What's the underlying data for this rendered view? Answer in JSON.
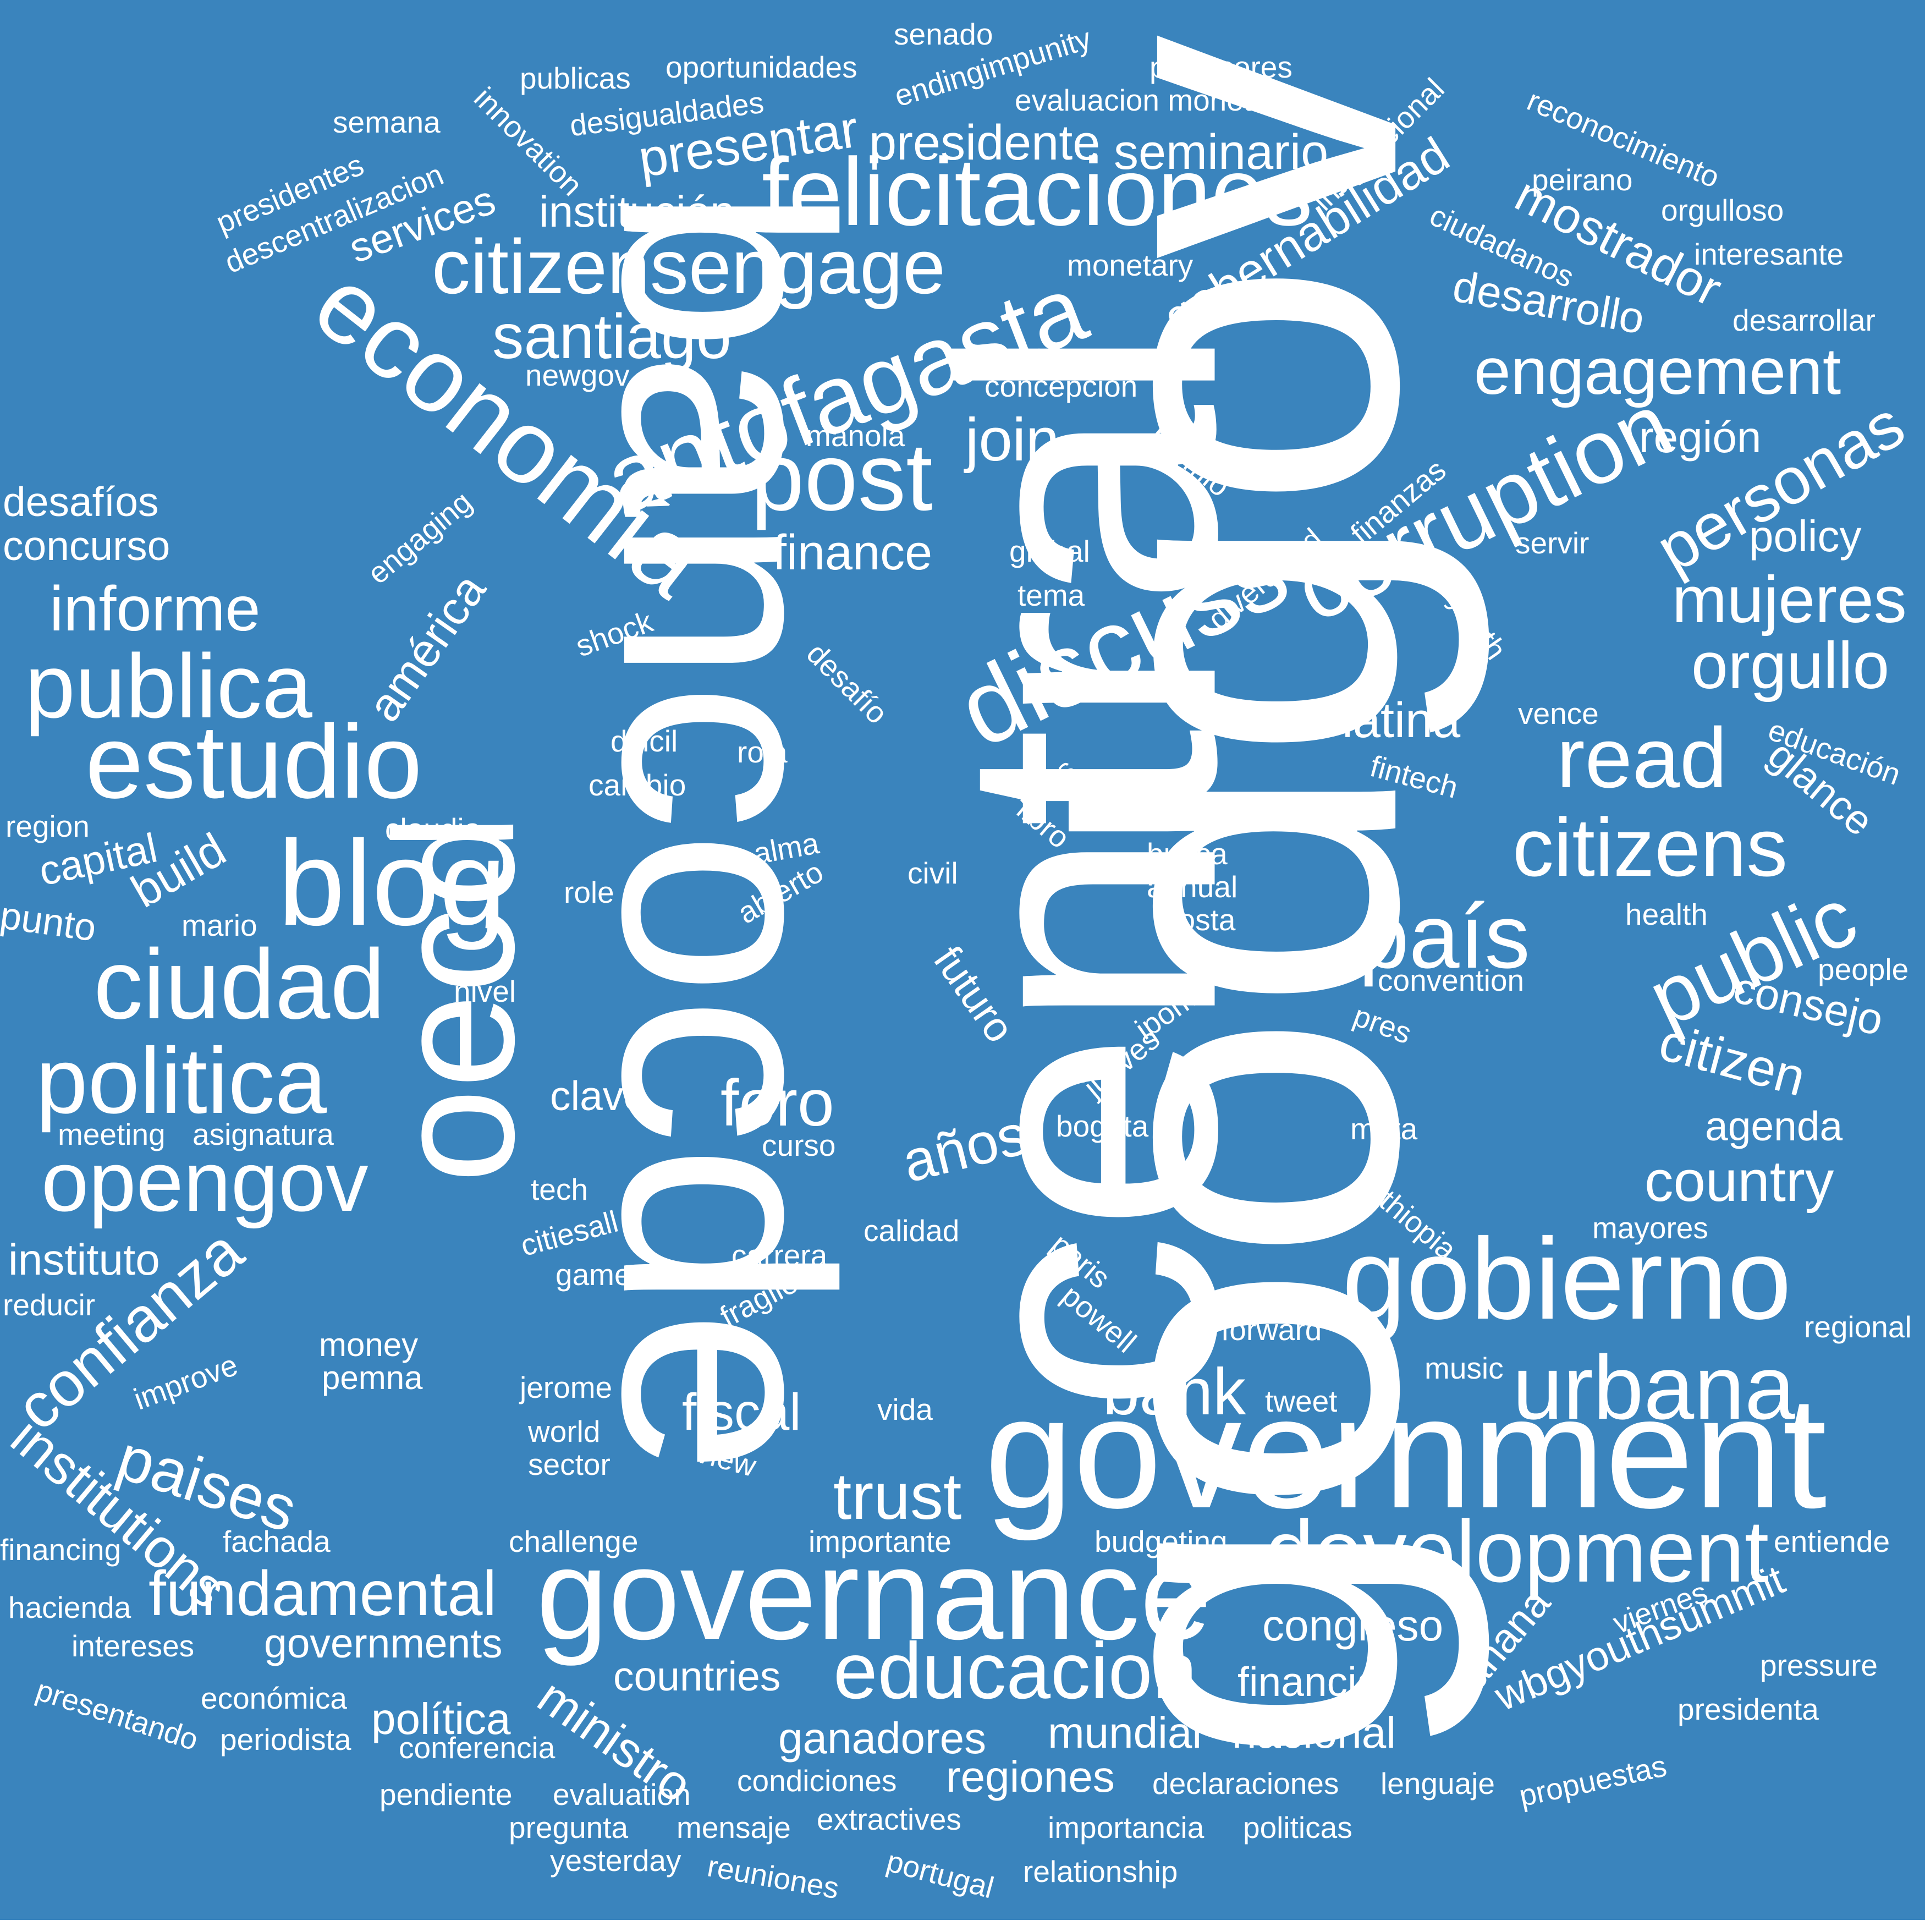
{
  "background_color": "#3a84bd",
  "text_color": "#ffffff",
  "words": [
    "goodgov",
    "central",
    "bancocde",
    "oecd",
    "government",
    "governance",
    "economía",
    "felicitaciones",
    "citizensengage",
    "antofagasta",
    "post",
    "discuss",
    "corruption",
    "estudio",
    "blog",
    "ciudad",
    "politica",
    "opengov",
    "publica",
    "informe",
    "read",
    "citizens",
    "país",
    "gobierno",
    "urbana",
    "development",
    "educacion",
    "engagement",
    "personas",
    "public",
    "mujeres",
    "orgullo",
    "santiago",
    "join",
    "finance",
    "latina",
    "foro",
    "años",
    "trust",
    "bank",
    "fiscal",
    "fundamental",
    "paises",
    "confianza",
    "institutions",
    "presentar",
    "presidente",
    "seminario",
    "institución",
    "services",
    "gobernabilidad",
    "mostrador",
    "desarrollo",
    "región",
    "policy",
    "citizen",
    "consejo",
    "agenda",
    "country",
    "glance",
    "clave",
    "build",
    "capital",
    "punto",
    "américa",
    "desafíos",
    "concurso",
    "instituto",
    "reducir",
    "improve",
    "money",
    "pemna",
    "financing",
    "hacienda",
    "intereses",
    "presentando",
    "periodista",
    "conferencia",
    "pendiente",
    "evaluation",
    "pregunta",
    "mensaje",
    "yesterday",
    "reuniones",
    "extractives",
    "portugal",
    "relationship",
    "importancia",
    "politicas",
    "condiciones",
    "declaraciones",
    "lenguaje",
    "propuestas",
    "presidenta",
    "pressure",
    "viernes",
    "entiende",
    "wbgyouthsummit",
    "mañana",
    "mayores",
    "regional",
    "forward",
    "music",
    "tweet",
    "paris",
    "powell",
    "ethiopia",
    "meta",
    "bogota",
    "curso",
    "tech",
    "citiesall",
    "game",
    "carrera",
    "fragile",
    "calidad",
    "jerome",
    "world",
    "sector",
    "view",
    "vida",
    "challenge",
    "fachada",
    "importante",
    "budgeting",
    "congreso",
    "governments",
    "countries",
    "financial",
    "ministro",
    "política",
    "económica",
    "ganadores",
    "mundial",
    "nacional",
    "regiones",
    "meeting",
    "asignatura",
    "nivel",
    "role",
    "mario",
    "civil",
    "alma",
    "abierto",
    "busca",
    "annual",
    "costa",
    "futuro",
    "ipom",
    "jueves",
    "pres",
    "convention",
    "health",
    "people",
    "libro",
    "mins",
    "fintech",
    "vence",
    "educación",
    "claudia",
    "region",
    "dificil",
    "cambio",
    "roja",
    "desafío",
    "shock",
    "tema",
    "global",
    "diversidad",
    "finanzas",
    "youth",
    "servir",
    "engaging",
    "mayo",
    "manola",
    "premio",
    "concepción",
    "newgov",
    "monetary",
    "interesante",
    "desarrollar",
    "ciudadanos",
    "orgulloso",
    "peirano",
    "reconocimiento",
    "internacional",
    "evaluacion monetaria",
    "profesores",
    "endingimpunity",
    "senado",
    "oportunidades",
    "publicas",
    "desigualdades",
    "innovation",
    "semana",
    "presidentes",
    "descentralizacion"
  ]
}
